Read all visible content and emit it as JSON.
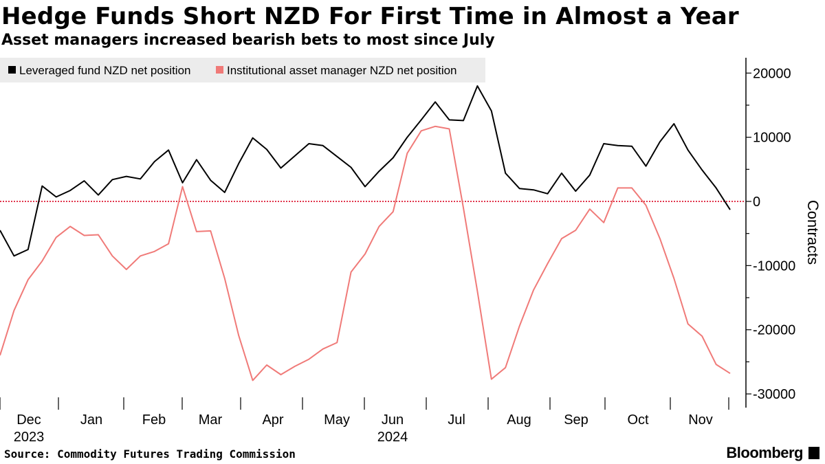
{
  "title": "Hedge Funds Short NZD For First Time in Almost a Year",
  "subtitle": "Asset managers increased bearish bets to most since July",
  "source": "Source: Commodity Futures Trading Commission",
  "brand": "Bloomberg",
  "chart_data": {
    "type": "line",
    "ylabel": "Contracts",
    "ylim": [
      -32000,
      22000
    ],
    "yticks": [
      20000,
      10000,
      0,
      -10000,
      -20000,
      -30000
    ],
    "xticks": [
      {
        "label": "Dec",
        "year": "2023"
      },
      {
        "label": "Jan",
        "year": ""
      },
      {
        "label": "Feb",
        "year": ""
      },
      {
        "label": "Mar",
        "year": ""
      },
      {
        "label": "Apr",
        "year": ""
      },
      {
        "label": "May",
        "year": ""
      },
      {
        "label": "Jun",
        "year": "2024"
      },
      {
        "label": "Jul",
        "year": ""
      },
      {
        "label": "Aug",
        "year": ""
      },
      {
        "label": "Sep",
        "year": ""
      },
      {
        "label": "Oct",
        "year": ""
      },
      {
        "label": "Nov",
        "year": ""
      }
    ],
    "legend_position": "top-left",
    "zero_line_color": "#e0344b",
    "series": [
      {
        "name": "Leveraged fund NZD net position",
        "color": "#000000",
        "values": [
          -4500,
          -8500,
          -7500,
          2400,
          700,
          1700,
          3200,
          1000,
          3400,
          3900,
          3500,
          6200,
          8000,
          2900,
          6500,
          3300,
          1400,
          5900,
          9900,
          8100,
          5200,
          7100,
          9000,
          8700,
          7000,
          5300,
          2300,
          4700,
          6800,
          10000,
          12700,
          15500,
          12700,
          12600,
          18000,
          14100,
          4400,
          2000,
          1800,
          1200,
          4400,
          1600,
          4100,
          9000,
          8700,
          8600,
          5500,
          9300,
          12100,
          8000,
          4900,
          2100,
          -1300
        ]
      },
      {
        "name": "Institutional asset manager NZD net position",
        "color": "#f07a78",
        "values": [
          -24000,
          -17000,
          -12200,
          -9300,
          -5600,
          -3900,
          -5300,
          -5200,
          -8500,
          -10600,
          -8500,
          -7800,
          -6600,
          2300,
          -4700,
          -4600,
          -12000,
          -20900,
          -27900,
          -25500,
          -27000,
          -25700,
          -24600,
          -23000,
          -22000,
          -11000,
          -8200,
          -3900,
          -1600,
          7500,
          11000,
          11700,
          11300,
          -1000,
          -14000,
          -27700,
          -25900,
          -19400,
          -13800,
          -9700,
          -5800,
          -4500,
          -1200,
          -3300,
          2100,
          2100,
          -600,
          -5800,
          -12000,
          -19100,
          -21000,
          -25400,
          -26800
        ]
      }
    ]
  }
}
